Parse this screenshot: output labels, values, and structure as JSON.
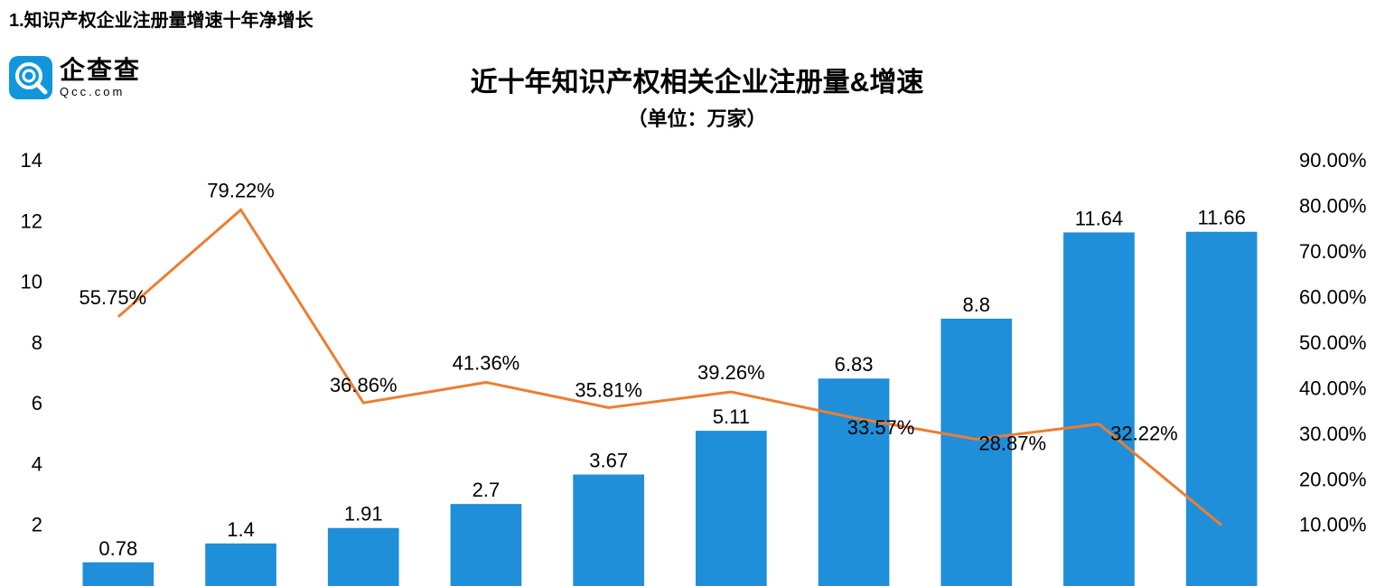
{
  "heading": "1.知识产权企业注册量增速十年净增长",
  "logo": {
    "text": "企查查",
    "sub": "Qcc.com"
  },
  "chart": {
    "type": "bar+line",
    "title": "近十年知识产权相关企业注册量&增速",
    "subtitle": "（单位：万家）",
    "background_color": "#ffffff",
    "bar_color": "#1f8fd9",
    "line_color": "#ed7d31",
    "text_color": "#000000",
    "title_fontsize": 30,
    "label_fontsize": 22,
    "line_width": 3,
    "y_left": {
      "min": 2,
      "max": 14,
      "step": 2,
      "ticks": [
        2,
        4,
        6,
        8,
        10,
        12,
        14
      ]
    },
    "y_right": {
      "min": 10,
      "max": 90,
      "step": 10,
      "suffix": ".00%",
      "ticks": [
        10,
        20,
        30,
        40,
        50,
        60,
        70,
        80,
        90
      ]
    },
    "categories_count": 10,
    "bars": [
      0.78,
      1.4,
      1.91,
      2.7,
      3.67,
      5.11,
      6.83,
      8.8,
      11.64,
      11.66
    ],
    "bar_labels": [
      "0.78",
      "1.4",
      "1.91",
      "2.7",
      "3.67",
      "5.11",
      "6.83",
      "8.8",
      "11.64",
      "11.66"
    ],
    "line": [
      55.75,
      79.22,
      36.86,
      41.36,
      35.81,
      39.26,
      33.57,
      28.87,
      32.22,
      10.0
    ],
    "line_labels": [
      "55.75%",
      "79.22%",
      "36.86%",
      "41.36%",
      "35.81%",
      "39.26%",
      "33.57%",
      "28.87%",
      "32.22%",
      ""
    ],
    "bar_width_ratio": 0.58
  }
}
